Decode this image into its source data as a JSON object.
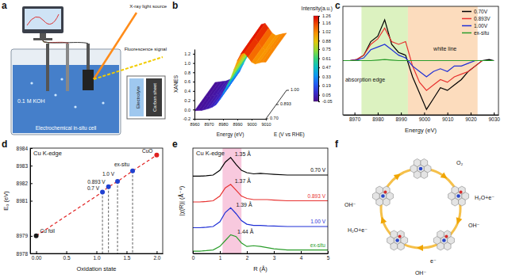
{
  "chart_data": [
    {
      "panel": "b",
      "type": "surface",
      "x_label": "Energy (eV)",
      "y_label": "XANES",
      "z_label": "E (V vs RHE)",
      "x": [
        8960,
        8962.5,
        8965,
        8967.5,
        8970,
        8972.5,
        8975,
        8977.5,
        8980,
        8982.5,
        8985,
        8987.5,
        8990,
        8992.5,
        8995,
        8997.5,
        9000,
        9002.5,
        9005,
        9007.5,
        9010
      ],
      "xlim": [
        8960,
        9010
      ],
      "xticks": [
        8960,
        8970,
        8980,
        8990,
        9000,
        9010
      ],
      "ylim": [
        -0.2,
        1.3
      ],
      "yticks": [
        -0.2,
        {
          "value": 0,
          "label": "0.0"
        },
        0.2,
        0.4,
        0.6,
        0.8,
        {
          "value": 1,
          "label": "1.0"
        },
        1.2
      ],
      "categories": [
        "0.70",
        "0.893",
        "1.00"
      ],
      "values": [
        [
          -0.03,
          -0.02,
          -0.02,
          0.0,
          0.02,
          0.05,
          0.1,
          0.2,
          0.35,
          0.5,
          0.65,
          0.85,
          1.05,
          1.2,
          1.22,
          1.12,
          1.02,
          0.98,
          1.0,
          1.02,
          1.02
        ],
        [
          -0.03,
          -0.02,
          -0.01,
          0.0,
          0.02,
          0.05,
          0.11,
          0.21,
          0.37,
          0.52,
          0.67,
          0.87,
          1.07,
          1.21,
          1.23,
          1.13,
          1.02,
          0.98,
          1.0,
          1.02,
          1.03
        ],
        [
          -0.03,
          -0.02,
          -0.01,
          0.0,
          0.03,
          0.06,
          0.12,
          0.22,
          0.38,
          0.53,
          0.68,
          0.88,
          1.08,
          1.22,
          1.24,
          1.14,
          1.03,
          0.98,
          1.0,
          1.02,
          1.03
        ]
      ],
      "colorbar": {
        "title": "Intensity(a.u.)",
        "range": [
          -0.05,
          1.26
        ],
        "ticks": [
          -0.05,
          0.05,
          0.19,
          0.33,
          0.47,
          0.61,
          0.75,
          0.88,
          1.02,
          1.16,
          1.26
        ]
      }
    },
    {
      "panel": "c",
      "type": "line",
      "x_label": "Energy (eV)",
      "x": [
        8965,
        8968,
        8971,
        8974,
        8977,
        8980,
        8983,
        8986,
        8989,
        8992,
        8995,
        8998,
        9001,
        9004,
        9007,
        9010,
        9013,
        9016,
        9019,
        9022,
        9025,
        9028,
        9030
      ],
      "xlim": [
        8965,
        9032
      ],
      "xticks": [
        8970,
        8980,
        8990,
        9000,
        9010,
        9020,
        9030
      ],
      "ylim": [
        -1,
        1
      ],
      "tick_labels": "x",
      "legend": "upper right",
      "bands": [
        {
          "x": [
            8973,
            8993
          ],
          "color": "#dcf2c0"
        },
        {
          "x": [
            8993,
            9023
          ],
          "color": "#fcdcbd"
        }
      ],
      "annotations": [
        {
          "text": "absorption edge",
          "x": 8966,
          "y": -0.38
        },
        {
          "text": "white line",
          "x": 9004,
          "y": 0.18
        }
      ],
      "series": [
        {
          "name": "0.70V",
          "color": "#000000",
          "values": [
            0,
            0,
            0.02,
            0.1,
            0.35,
            0.45,
            0.75,
            0.3,
            0.15,
            0.1,
            -0.3,
            -0.6,
            -0.9,
            -0.7,
            -0.5,
            -0.55,
            -0.45,
            -0.35,
            -0.2,
            -0.1,
            0,
            0.02,
            0
          ]
        },
        {
          "name": "0.893V",
          "color": "#e8312f",
          "values": [
            0,
            0,
            0.02,
            0.1,
            0.3,
            0.4,
            0.6,
            0.35,
            0.3,
            0.35,
            -0.1,
            -0.4,
            -0.55,
            -0.45,
            -0.35,
            -0.4,
            -0.3,
            -0.25,
            -0.2,
            -0.1,
            0,
            0,
            0
          ]
        },
        {
          "name": "1.00V",
          "color": "#1f2fd6",
          "values": [
            0,
            0,
            0.01,
            0.05,
            0.2,
            0.25,
            0.3,
            0.2,
            0.1,
            0.05,
            -0.1,
            -0.2,
            -0.3,
            -0.2,
            -0.15,
            -0.2,
            -0.1,
            -0.1,
            -0.05,
            0,
            0,
            0,
            0
          ]
        },
        {
          "name": "ex-situ",
          "color": "#2a9d2a",
          "values": [
            0,
            0,
            0,
            0,
            0,
            0.01,
            0.02,
            0.01,
            0,
            0,
            0,
            0,
            0,
            0,
            0,
            0,
            0,
            0,
            0,
            0,
            0,
            0,
            0
          ]
        }
      ]
    },
    {
      "panel": "d",
      "type": "line",
      "title": "Cu K-edge",
      "x_label": "Oxidation state",
      "y_label": "E₀ (eV)",
      "x": [
        0,
        1.1,
        1.2,
        1.35,
        1.6,
        2
      ],
      "values": [
        8979,
        8981.5,
        8981.8,
        8982.1,
        8982.7,
        8983.6
      ],
      "point_labels": [
        "Cu foil",
        "0.7 V",
        "0.893 V",
        "1.0 V",
        "ex-situ",
        "CuO"
      ],
      "colors": [
        "#1a1a1a",
        "#2040d0",
        "#2040d0",
        "#2040d0",
        "#2040d0",
        "#e02020"
      ],
      "color": "#e02020",
      "line_style": "dashed",
      "marker": "circle",
      "xlim": [
        -0.1,
        2.1
      ],
      "xticks": [
        {
          "value": 0,
          "label": "0.00"
        },
        0.5,
        {
          "value": 1,
          "label": "1.0"
        },
        1.5,
        {
          "value": 2,
          "label": "2.0"
        }
      ],
      "ylim": [
        8978,
        8984
      ],
      "yticks": [
        8978,
        8979,
        8981,
        8982,
        8983,
        8984
      ]
    },
    {
      "panel": "e",
      "type": "line",
      "title": "Cu K-edge",
      "x_label": "R (Å)",
      "y_label": "|χ(R)| (Å⁻⁴)",
      "x": [
        0,
        0.25,
        0.5,
        0.75,
        1.0,
        1.2,
        1.4,
        1.6,
        1.8,
        2.0,
        2.25,
        2.5,
        2.75,
        3,
        3.5,
        4,
        4.5,
        5
      ],
      "xlim": [
        0,
        5
      ],
      "xticks": [
        0,
        1,
        2,
        3,
        4,
        5
      ],
      "ylim": [
        0,
        4.5
      ],
      "tick_labels": "x",
      "bands": [
        {
          "x": [
            1.1,
            1.8
          ],
          "color": "#f8c9de"
        }
      ],
      "annotations": [
        {
          "text": "1.35 Å",
          "x": 1.55,
          "y": 4.15
        },
        {
          "text": "1.37 Å",
          "x": 1.55,
          "y": 3.0
        },
        {
          "text": "1.39 Å",
          "x": 1.6,
          "y": 2.0
        },
        {
          "text": "1.44 Å",
          "x": 1.65,
          "y": 0.85
        }
      ],
      "series": [
        {
          "name": "0.70 V",
          "color": "#000000",
          "values": [
            3.3,
            3.3,
            3.32,
            3.35,
            3.55,
            3.9,
            4.1,
            3.8,
            3.55,
            3.45,
            3.4,
            3.42,
            3.4,
            3.38,
            3.35,
            3.35,
            3.35,
            3.35
          ]
        },
        {
          "name": "0.893 V",
          "color": "#e8312f",
          "values": [
            2.2,
            2.2,
            2.22,
            2.25,
            2.45,
            2.8,
            2.95,
            2.7,
            2.45,
            2.35,
            2.3,
            2.3,
            2.3,
            2.28,
            2.25,
            2.25,
            2.25,
            2.25
          ]
        },
        {
          "name": "1.00 V",
          "color": "#1f2fd6",
          "values": [
            1.1,
            1.1,
            1.12,
            1.15,
            1.35,
            1.75,
            1.95,
            1.7,
            1.4,
            1.25,
            1.2,
            1.2,
            1.18,
            1.17,
            1.15,
            1.15,
            1.15,
            1.15
          ]
        },
        {
          "name": "ex-situ",
          "color": "#2a9d2a",
          "values": [
            0.1,
            0.1,
            0.12,
            0.15,
            0.3,
            0.55,
            0.8,
            0.72,
            0.45,
            0.3,
            0.33,
            0.3,
            0.25,
            0.2,
            0.15,
            0.15,
            0.15,
            0.15
          ]
        }
      ]
    }
  ],
  "schematic": {
    "panel": "a",
    "labels": {
      "source": "X-ray light source",
      "signal": "Fluorescence signal",
      "solution": "0.1 M KOH",
      "cell": "Electrochemical in-situ cell",
      "layer_1": "Electrolyte",
      "layer_2": "Carbon sheet"
    }
  },
  "mechanism": {
    "panel": "f",
    "labels": [
      "OH⁻",
      "O₂",
      "H₂O+e⁻",
      "OH⁻",
      "e⁻",
      "OH⁻",
      "H₂O+e⁻"
    ]
  }
}
